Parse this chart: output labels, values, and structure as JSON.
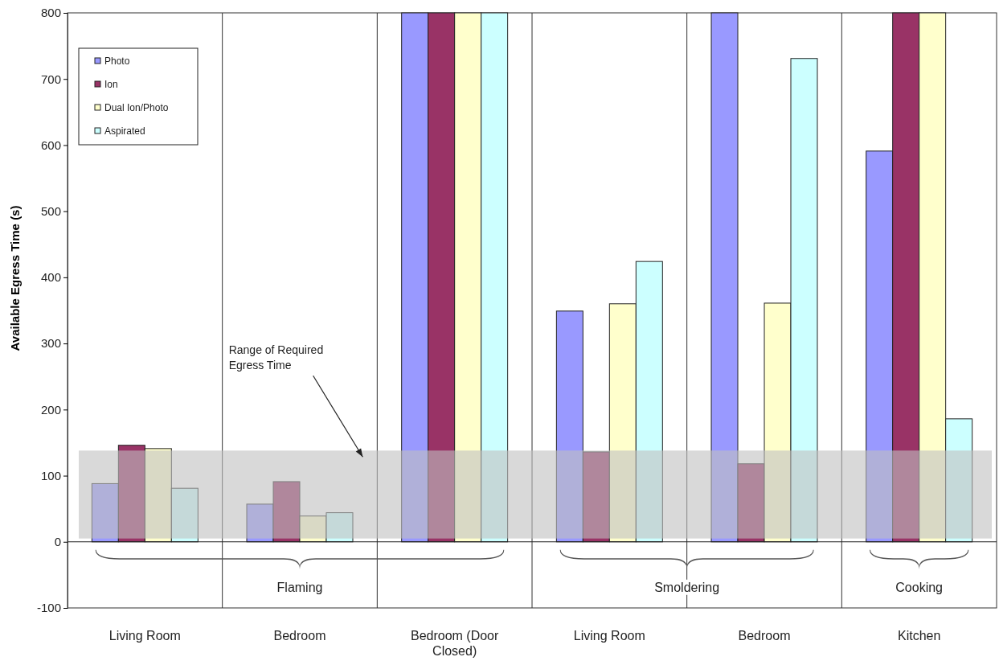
{
  "chart_data": {
    "type": "bar",
    "ylabel": "Available Egress Time (s)",
    "categories": [
      "Living Room",
      "Bedroom",
      "Bedroom (Door Closed)",
      "Living Room",
      "Bedroom",
      "Kitchen"
    ],
    "series": [
      {
        "name": "Photo",
        "color": "#9999ff",
        "values": [
          88,
          57,
          800,
          349,
          800,
          591
        ]
      },
      {
        "name": "Ion",
        "color": "#993366",
        "values": [
          146,
          91,
          800,
          136,
          118,
          800
        ]
      },
      {
        "name": "Dual Ion/Photo",
        "color": "#ffffcc",
        "values": [
          141,
          39,
          800,
          360,
          361,
          800
        ]
      },
      {
        "name": "Aspirated",
        "color": "#ccffff",
        "values": [
          81,
          44,
          800,
          424,
          731,
          186
        ]
      }
    ],
    "ylim": [
      -100,
      800
    ],
    "yticks": [
      -100,
      0,
      100,
      200,
      300,
      400,
      500,
      600,
      700,
      800
    ],
    "bands": [
      {
        "axis": "y",
        "from": 5,
        "to": 138,
        "label": "Range of Required Egress Time",
        "color": "#bfbfbf"
      }
    ],
    "annotations": [
      "Flaming",
      "Smoldering",
      "Cooking"
    ],
    "legend": "top left",
    "grid": false
  }
}
